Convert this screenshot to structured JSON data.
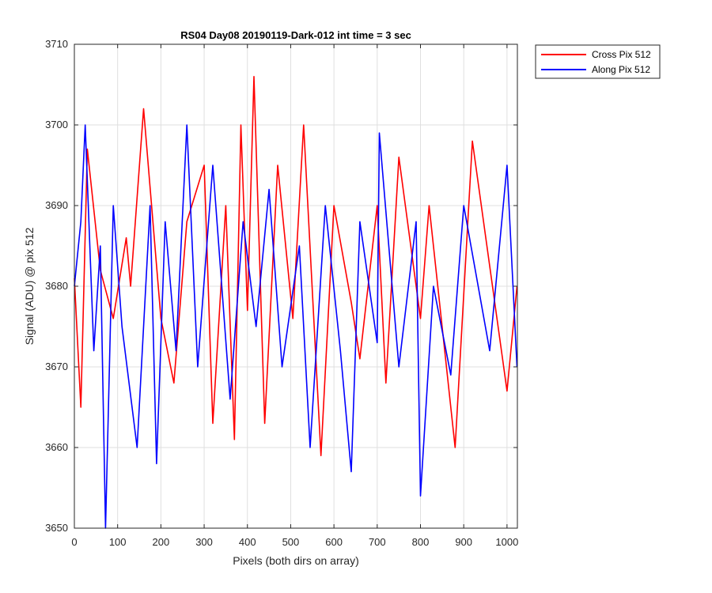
{
  "chart_data": {
    "type": "line",
    "title": "RS04 Day08 20190119-Dark-012 int time = 3 sec",
    "xlabel": "Pixels (both dirs on array)",
    "ylabel": "Signal (ADU) @ pix 512",
    "xlim": [
      0,
      1024
    ],
    "ylim": [
      3650,
      3710
    ],
    "xticks": [
      0,
      100,
      200,
      300,
      400,
      500,
      600,
      700,
      800,
      900,
      1000
    ],
    "yticks": [
      3650,
      3660,
      3670,
      3680,
      3690,
      3700,
      3710
    ],
    "grid": true,
    "legend_position": "outside-top-right",
    "series": [
      {
        "name": "Cross Pix 512",
        "color": "#ff0000",
        "x": [
          0,
          15,
          30,
          60,
          90,
          120,
          130,
          160,
          200,
          230,
          260,
          300,
          320,
          350,
          370,
          385,
          400,
          415,
          440,
          470,
          505,
          530,
          570,
          600,
          640,
          660,
          700,
          720,
          750,
          800,
          820,
          880,
          920,
          1000,
          1023
        ],
        "y": [
          3681,
          3665,
          3697,
          3682,
          3676,
          3686,
          3680,
          3702,
          3676,
          3668,
          3688,
          3695,
          3663,
          3690,
          3661,
          3700,
          3677,
          3706,
          3663,
          3695,
          3676,
          3700,
          3659,
          3690,
          3678,
          3671,
          3690,
          3668,
          3696,
          3676,
          3690,
          3660,
          3698,
          3667,
          3680
        ]
      },
      {
        "name": "Along Pix 512",
        "color": "#0000ff",
        "x": [
          0,
          15,
          25,
          45,
          60,
          72,
          90,
          110,
          145,
          175,
          190,
          210,
          235,
          260,
          285,
          320,
          360,
          390,
          420,
          450,
          480,
          520,
          545,
          580,
          615,
          640,
          660,
          700,
          705,
          750,
          790,
          800,
          830,
          870,
          900,
          960,
          1000,
          1023
        ],
        "y": [
          3680,
          3688,
          3700,
          3672,
          3685,
          3650,
          3690,
          3675,
          3660,
          3690,
          3658,
          3688,
          3672,
          3700,
          3670,
          3695,
          3666,
          3688,
          3675,
          3692,
          3670,
          3685,
          3660,
          3690,
          3672,
          3657,
          3688,
          3673,
          3699,
          3670,
          3688,
          3654,
          3680,
          3669,
          3690,
          3672,
          3695,
          3670
        ]
      }
    ]
  }
}
